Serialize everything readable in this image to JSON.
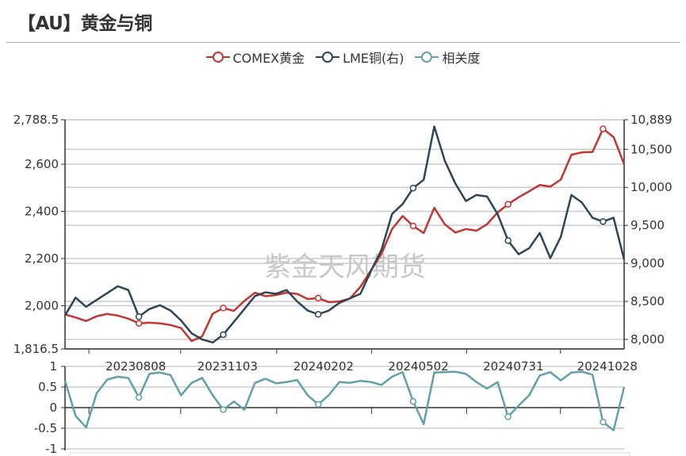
{
  "title": "【AU】黄金与铜",
  "watermark": "紫金天风期货",
  "chart_data": [
    {
      "type": "line",
      "legend_position": "top",
      "grid": true,
      "x": [
        "2023-06-02",
        "2023-06-12",
        "2023-06-22",
        "2023-07-02",
        "2023-07-12",
        "2023-07-22",
        "2023-08-01",
        "2023-08-11",
        "2023-08-21",
        "2023-08-31",
        "2023-09-10",
        "2023-09-20",
        "2023-09-30",
        "2023-10-10",
        "2023-10-20",
        "2023-10-30",
        "2023-11-09",
        "2023-11-19",
        "2023-11-29",
        "2023-12-09",
        "2023-12-19",
        "2023-12-29",
        "2024-01-08",
        "2024-01-18",
        "2024-01-28",
        "2024-02-07",
        "2024-02-17",
        "2024-02-27",
        "2024-03-08",
        "2024-03-18",
        "2024-03-28",
        "2024-04-07",
        "2024-04-17",
        "2024-04-27",
        "2024-05-07",
        "2024-05-17",
        "2024-05-27",
        "2024-06-06",
        "2024-06-16",
        "2024-06-26",
        "2024-07-06",
        "2024-07-16",
        "2024-07-26",
        "2024-08-05",
        "2024-08-15",
        "2024-08-25",
        "2024-09-04",
        "2024-09-14",
        "2024-09-24",
        "2024-10-04",
        "2024-10-14",
        "2024-10-24",
        "2024-11-03",
        "2024-11-13"
      ],
      "xlim": [
        "2023-06-02",
        "2024-11-13"
      ],
      "x_tick_labels": [
        "20230808",
        "20231103",
        "20240202",
        "20240502",
        "20240731",
        "20241028"
      ],
      "y_left": {
        "ylim": [
          1816.5,
          2788.5
        ],
        "ticks": [
          "2,788.5",
          "2,600",
          "2,400",
          "2,200",
          "2,000",
          "1,816.5"
        ]
      },
      "y_right": {
        "ylim": [
          7875,
          10889
        ],
        "ticks": [
          "10,889",
          "10,500",
          "10,000",
          "9,500",
          "9,000",
          "8,500",
          "8,000"
        ]
      },
      "series": [
        {
          "name": "COMEX黄金",
          "axis": "left",
          "color": "#c23531",
          "values": [
            1963,
            1950,
            1935,
            1955,
            1965,
            1958,
            1945,
            1925,
            1928,
            1925,
            1918,
            1905,
            1850,
            1870,
            1966,
            1990,
            1978,
            2020,
            2055,
            2040,
            2045,
            2055,
            2050,
            2028,
            2032,
            2015,
            2018,
            2030,
            2080,
            2150,
            2220,
            2325,
            2380,
            2338,
            2308,
            2415,
            2345,
            2310,
            2325,
            2318,
            2345,
            2395,
            2430,
            2460,
            2485,
            2512,
            2505,
            2535,
            2640,
            2650,
            2652,
            2750,
            2715,
            2600
          ]
        },
        {
          "name": "LME铜(右)",
          "axis": "right",
          "color": "#2f4554",
          "values": [
            8314,
            8550,
            8430,
            8520,
            8610,
            8700,
            8650,
            8300,
            8400,
            8450,
            8380,
            8250,
            8080,
            8000,
            7960,
            8063,
            8230,
            8400,
            8570,
            8620,
            8600,
            8650,
            8500,
            8380,
            8330,
            8380,
            8480,
            8540,
            8600,
            8900,
            9180,
            9650,
            9780,
            9990,
            10100,
            10800,
            10350,
            10050,
            9820,
            9900,
            9880,
            9650,
            9300,
            9120,
            9200,
            9400,
            9070,
            9350,
            9900,
            9800,
            9600,
            9550,
            9600,
            9050
          ]
        }
      ]
    },
    {
      "type": "line",
      "grid": true,
      "ylim": [
        -1,
        1
      ],
      "y_ticks": [
        "1",
        "0.5",
        "0",
        "-0.5",
        "-1"
      ],
      "series": [
        {
          "name": "相关度",
          "color": "#61a0a8",
          "values": [
            0.65,
            -0.2,
            -0.48,
            0.35,
            0.68,
            0.75,
            0.72,
            0.25,
            0.82,
            0.85,
            0.79,
            0.3,
            0.6,
            0.72,
            0.3,
            -0.05,
            0.15,
            -0.05,
            0.6,
            0.7,
            0.59,
            0.62,
            0.67,
            0.3,
            0.08,
            0.3,
            0.62,
            0.6,
            0.65,
            0.62,
            0.55,
            0.75,
            0.86,
            0.15,
            -0.4,
            0.85,
            0.86,
            0.87,
            0.82,
            0.62,
            0.46,
            0.62,
            -0.22,
            0.05,
            0.3,
            0.78,
            0.86,
            0.66,
            0.85,
            0.87,
            0.8,
            -0.35,
            -0.55,
            0.5
          ]
        }
      ]
    }
  ]
}
